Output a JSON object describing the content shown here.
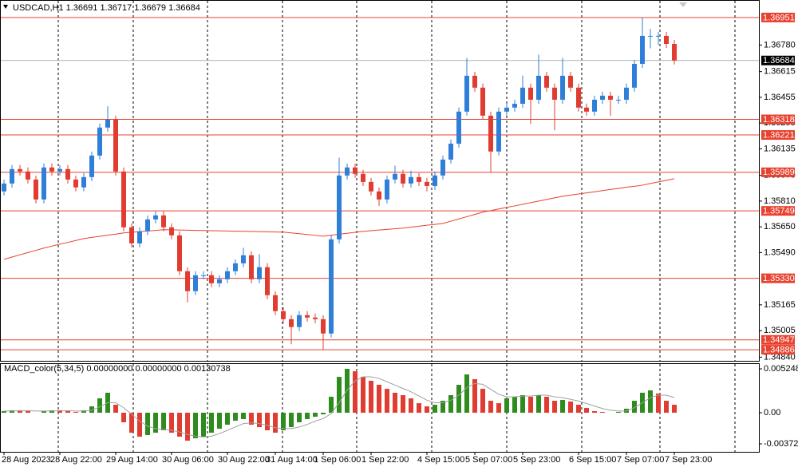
{
  "chart_data": [
    {
      "type": "candlestick",
      "title": "USDCAD,H1 1.36691 1.36717 1.36679 1.36684",
      "categories": [
        "28 Aug 2023",
        null,
        null,
        null,
        null,
        null,
        null,
        "28 Aug 22:00",
        null,
        null,
        null,
        null,
        null,
        null,
        "29 Aug 14:00",
        null,
        null,
        null,
        null,
        null,
        null,
        "30 Aug 06:00",
        null,
        null,
        null,
        null,
        null,
        null,
        "30 Aug 22:00",
        null,
        null,
        null,
        null,
        null,
        "31 Aug 14:00",
        null,
        null,
        null,
        null,
        null,
        "1 Sep 06:00",
        null,
        null,
        null,
        null,
        null,
        "1 Sep 22:00",
        null,
        null,
        null,
        null,
        null,
        null,
        "4 Sep 15:00",
        null,
        null,
        null,
        null,
        null,
        "5 Sep 07:00",
        null,
        null,
        null,
        null,
        null,
        "5 Sep 23:00",
        null,
        null,
        null,
        null,
        null,
        null,
        "6 Sep 15:00",
        null,
        null,
        null,
        null,
        null,
        "7 Sep 07:00",
        null,
        null,
        null,
        null,
        null,
        "7 Sep 23:00"
      ],
      "open": [
        1.3587,
        1.35919,
        1.36009,
        1.35994,
        1.35944,
        1.3582,
        1.36019,
        1.35994,
        1.36009,
        1.35944,
        1.35895,
        1.35959,
        1.36093,
        1.36267,
        1.36316,
        1.35994,
        1.35647,
        1.35547,
        1.35622,
        1.35696,
        1.35721,
        1.35647,
        1.35597,
        1.35374,
        1.3525,
        1.35349,
        1.35349,
        1.35299,
        1.35324,
        1.35374,
        1.35423,
        1.35473,
        1.35324,
        1.35399,
        1.35225,
        1.35126,
        1.35076,
        1.35027,
        1.35101,
        1.35086,
        1.35076,
        1.34987,
        1.35572,
        1.35969,
        1.36019,
        1.35979,
        1.35929,
        1.3587,
        1.3582,
        1.35944,
        1.35979,
        1.35919,
        1.35959,
        1.35929,
        1.35904,
        1.35969,
        1.36068,
        1.36167,
        1.36366,
        1.36589,
        1.36515,
        1.36341,
        1.36118,
        1.36366,
        1.36391,
        1.36415,
        1.36515,
        1.3644,
        1.36589,
        1.36515,
        1.3644,
        1.36589,
        1.36515,
        1.36391,
        1.36366,
        1.3644,
        1.36465,
        1.3644,
        1.3644,
        1.36515,
        1.36663,
        1.36837,
        1.36837,
        1.36837,
        1.36787
      ],
      "high": [
        1.35944,
        1.36034,
        1.36034,
        1.36019,
        1.35969,
        1.36044,
        1.36044,
        1.36034,
        1.36034,
        1.35969,
        1.35984,
        1.36118,
        1.36292,
        1.364,
        1.36341,
        1.36019,
        1.35672,
        1.35647,
        1.35721,
        1.35746,
        1.35746,
        1.35672,
        1.35622,
        1.35399,
        1.35374,
        1.35374,
        1.35374,
        1.35349,
        1.35399,
        1.35448,
        1.3552,
        1.35498,
        1.3548,
        1.35424,
        1.3525,
        1.35151,
        1.35101,
        1.35126,
        1.35126,
        1.35111,
        1.35101,
        1.35597,
        1.3608,
        1.36044,
        1.36044,
        1.36004,
        1.35954,
        1.35895,
        1.35969,
        1.3603,
        1.36004,
        1.36,
        1.35984,
        1.35954,
        1.35994,
        1.36093,
        1.36192,
        1.36391,
        1.367,
        1.36614,
        1.3654,
        1.36366,
        1.36391,
        1.36416,
        1.3644,
        1.3659,
        1.3654,
        1.3672,
        1.36614,
        1.3654,
        1.367,
        1.36614,
        1.3654,
        1.36416,
        1.36465,
        1.3649,
        1.3649,
        1.36465,
        1.3654,
        1.36688,
        1.36951,
        1.3688,
        1.36862,
        1.36862,
        1.36812
      ],
      "low": [
        1.35845,
        1.35894,
        1.35969,
        1.35919,
        1.35795,
        1.35795,
        1.35969,
        1.35969,
        1.35919,
        1.3587,
        1.3587,
        1.35934,
        1.36068,
        1.36242,
        1.35969,
        1.35622,
        1.35522,
        1.35522,
        1.35597,
        1.35671,
        1.35622,
        1.35572,
        1.35349,
        1.3518,
        1.35225,
        1.35324,
        1.35274,
        1.35274,
        1.35299,
        1.35349,
        1.35398,
        1.35299,
        1.35299,
        1.352,
        1.35101,
        1.35051,
        1.3492,
        1.35002,
        1.35061,
        1.35051,
        1.34886,
        1.34962,
        1.35547,
        1.35944,
        1.35954,
        1.35904,
        1.35845,
        1.3578,
        1.35795,
        1.35919,
        1.35894,
        1.35894,
        1.35904,
        1.3587,
        1.35879,
        1.35944,
        1.36043,
        1.36142,
        1.36341,
        1.3649,
        1.36316,
        1.3599,
        1.36093,
        1.36341,
        1.36366,
        1.3639,
        1.3629,
        1.36415,
        1.3649,
        1.3625,
        1.36415,
        1.3649,
        1.36366,
        1.36341,
        1.36341,
        1.36415,
        1.3634,
        1.36415,
        1.36415,
        1.3649,
        1.36638,
        1.3676,
        1.3678,
        1.36762,
        1.36659
      ],
      "close": [
        1.35919,
        1.36009,
        1.35994,
        1.35944,
        1.3582,
        1.36019,
        1.35994,
        1.36009,
        1.35944,
        1.35895,
        1.35959,
        1.36093,
        1.36267,
        1.36316,
        1.35994,
        1.35647,
        1.35547,
        1.35622,
        1.35696,
        1.35721,
        1.35647,
        1.35597,
        1.35374,
        1.3525,
        1.35349,
        1.35349,
        1.35299,
        1.35324,
        1.35374,
        1.35423,
        1.35473,
        1.35324,
        1.35399,
        1.35225,
        1.35126,
        1.35076,
        1.35027,
        1.35101,
        1.35086,
        1.35076,
        1.34987,
        1.35572,
        1.35969,
        1.36019,
        1.35979,
        1.35929,
        1.3587,
        1.3582,
        1.35944,
        1.35979,
        1.35919,
        1.35959,
        1.35929,
        1.35904,
        1.35969,
        1.36068,
        1.36167,
        1.36366,
        1.36589,
        1.36515,
        1.36341,
        1.36118,
        1.36366,
        1.36391,
        1.36415,
        1.36515,
        1.3644,
        1.36589,
        1.36515,
        1.3644,
        1.36589,
        1.36515,
        1.36391,
        1.36366,
        1.3644,
        1.36465,
        1.3644,
        1.3644,
        1.36515,
        1.36663,
        1.36837,
        1.36837,
        1.36837,
        1.36787,
        1.36684
      ],
      "up_color": "#2f7fd8",
      "down_color": "#e03c31",
      "ma_values": [
        1.35448,
        1.35462,
        1.35476,
        1.3549,
        1.35504,
        1.35518,
        1.3553,
        1.35542,
        1.35553,
        1.35565,
        1.35577,
        1.35584,
        1.35591,
        1.35598,
        1.35605,
        1.35612,
        1.35616,
        1.3562,
        1.35624,
        1.35628,
        1.35632,
        1.35631,
        1.3563,
        1.35629,
        1.35628,
        1.35627,
        1.35626,
        1.35625,
        1.35624,
        1.35623,
        1.35622,
        1.35621,
        1.3562,
        1.35619,
        1.35618,
        1.35617,
        1.35612,
        1.35607,
        1.35602,
        1.35597,
        1.35592,
        1.35598,
        1.35604,
        1.3561,
        1.35616,
        1.35622,
        1.35626,
        1.3563,
        1.35634,
        1.35638,
        1.35642,
        1.35648,
        1.35654,
        1.3566,
        1.35665,
        1.35671,
        1.35685,
        1.35699,
        1.35713,
        1.35727,
        1.35741,
        1.35751,
        1.35761,
        1.35771,
        1.3578,
        1.3579,
        1.358,
        1.3581,
        1.3582,
        1.3583,
        1.3584,
        1.35847,
        1.35854,
        1.35861,
        1.35868,
        1.35875,
        1.35882,
        1.35889,
        1.35896,
        1.35902,
        1.35909,
        1.35919,
        1.35929,
        1.35939,
        1.35949
      ],
      "ma_color": "#e8412f",
      "levels": [
        1.36951,
        1.36318,
        1.36221,
        1.35989,
        1.35749,
        {
          "value": 1.3533,
          "label": "1.35330"
        },
        1.34947,
        1.34886
      ],
      "level_color": "#e8412f",
      "current_price": 1.36684,
      "ylim": [
        1.34817,
        1.3705
      ],
      "yticks": [
        {
          "value": 1.3678,
          "label": "1.36780"
        },
        1.36615,
        1.36455,
        1.36295,
        1.36135,
        {
          "value": 1.3597,
          "label": "1.35970"
        },
        {
          "value": 1.3581,
          "label": "1.35810"
        },
        {
          "value": 1.3565,
          "label": "1.35650"
        },
        {
          "value": 1.3549,
          "label": "1.35490"
        },
        1.35165,
        1.35005,
        {
          "value": 1.3484,
          "label": "1.34840"
        }
      ],
      "grid": true
    },
    {
      "type": "macd_histogram",
      "title": "MACD_color(5,34,5) 0.00000000 0.00000000 0.00130738",
      "values": [
        0.00019,
        0.00029,
        0.00029,
        0.00019,
        0,
        0.00019,
        0.00029,
        0.00029,
        0.00019,
        0.0001,
        0.00029,
        0.00076,
        0.00172,
        0.00239,
        0.00095,
        -0.00114,
        -0.00239,
        -0.00286,
        -0.00267,
        -0.00239,
        -0.0021,
        -0.00239,
        -0.00286,
        -0.00334,
        -0.00305,
        -0.00286,
        -0.00239,
        -0.00191,
        -0.00143,
        -0.00095,
        -0.00076,
        -0.00143,
        -0.00172,
        -0.0021,
        -0.00239,
        -0.0021,
        -0.00172,
        -0.00114,
        -0.00076,
        -0.00048,
        -0.00019,
        0.00191,
        0.00429,
        0.00525,
        0.00496,
        0.00429,
        0.00382,
        0.00334,
        0.00286,
        0.00239,
        0.0021,
        0.00172,
        0.00114,
        0.00076,
        0.00095,
        0.00143,
        0.0021,
        0.00334,
        0.00458,
        0.00401,
        0.00286,
        0.00143,
        0.00114,
        0.00172,
        0.00191,
        0.0021,
        0.00191,
        0.0021,
        0.00191,
        0.00143,
        0.00153,
        0.00134,
        0.00095,
        0.00057,
        0.00019,
        0.0001,
        0,
        0.0001,
        0.00048,
        0.00143,
        0.00239,
        0.00267,
        0.00229,
        0.00143,
        0.00095
      ],
      "signal": [
        0.0002,
        0.0002,
        0.00025,
        0.00025,
        0.0002,
        0.0002,
        0.0002,
        0.00025,
        0.00025,
        0.0002,
        0.0002,
        0.0003,
        0.0007,
        0.0012,
        0.0012,
        0.0006,
        -0.0002,
        -0.001,
        -0.0016,
        -0.0019,
        -0.002,
        -0.0021,
        -0.0023,
        -0.0026,
        -0.0028,
        -0.0029,
        -0.0028,
        -0.0025,
        -0.0021,
        -0.0017,
        -0.0013,
        -0.0012,
        -0.0013,
        -0.0015,
        -0.0018,
        -0.0019,
        -0.0019,
        -0.0017,
        -0.0014,
        -0.001,
        -0.0007,
        -0.0001,
        0.0012,
        0.0027,
        0.0038,
        0.0043,
        0.0043,
        0.0041,
        0.0037,
        0.0033,
        0.0029,
        0.0025,
        0.002,
        0.0015,
        0.0012,
        0.0012,
        0.0015,
        0.0021,
        0.003,
        0.0035,
        0.0034,
        0.0028,
        0.0022,
        0.0019,
        0.0019,
        0.002,
        0.002,
        0.0021,
        0.0021,
        0.0019,
        0.0018,
        0.0016,
        0.0014,
        0.0011,
        0.0008,
        0.0005,
        0.0003,
        0.0002,
        0.0002,
        0.0006,
        0.0012,
        0.0018,
        0.0021,
        0.0021,
        0.0018
      ],
      "up_color": "#2e8b1e",
      "down_color": "#e03c31",
      "signal_color": "#a0a0a0",
      "ylim": [
        -0.00458,
        0.00592
      ],
      "yticks": [
        0.0052488,
        {
          "value": 0,
          "label": "0.00"
        },
        {
          "value": -0.00372,
          "label": "-0.003720"
        }
      ]
    }
  ]
}
